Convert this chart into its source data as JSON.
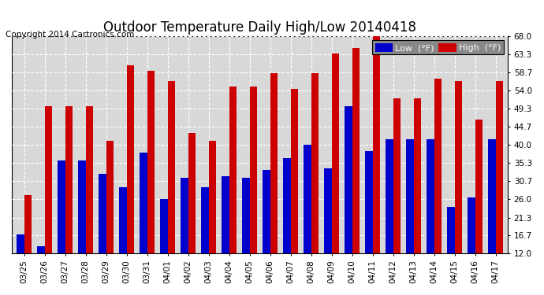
{
  "title": "Outdoor Temperature Daily High/Low 20140418",
  "copyright": "Copyright 2014 Cartronics.com",
  "legend_low": "Low  (°F)",
  "legend_high": "High  (°F)",
  "dates": [
    "03/25",
    "03/26",
    "03/27",
    "03/28",
    "03/29",
    "03/30",
    "03/31",
    "04/01",
    "04/02",
    "04/03",
    "04/04",
    "04/05",
    "04/06",
    "04/07",
    "04/08",
    "04/09",
    "04/10",
    "04/11",
    "04/12",
    "04/13",
    "04/14",
    "04/15",
    "04/16",
    "04/17"
  ],
  "high": [
    27.0,
    50.0,
    50.0,
    50.0,
    41.0,
    60.5,
    59.0,
    56.5,
    43.0,
    41.0,
    55.0,
    55.0,
    58.5,
    54.5,
    58.5,
    63.5,
    65.0,
    69.0,
    52.0,
    52.0,
    57.0,
    56.5,
    46.5,
    56.5
  ],
  "low": [
    17.0,
    14.0,
    36.0,
    36.0,
    32.5,
    29.0,
    38.0,
    26.0,
    31.5,
    29.0,
    32.0,
    31.5,
    33.5,
    36.5,
    40.0,
    34.0,
    50.0,
    38.5,
    41.5,
    41.5,
    41.5,
    24.0,
    26.5,
    41.5
  ],
  "ylim": [
    12.0,
    68.0
  ],
  "yticks": [
    12.0,
    16.7,
    21.3,
    26.0,
    30.7,
    35.3,
    40.0,
    44.7,
    49.3,
    54.0,
    58.7,
    63.3,
    68.0
  ],
  "bar_color_low": "#0000cc",
  "bar_color_high": "#cc0000",
  "background_color": "#ffffff",
  "plot_bg_color": "#d8d8d8",
  "title_fontsize": 12,
  "copyright_fontsize": 7.5,
  "bar_width": 0.38
}
